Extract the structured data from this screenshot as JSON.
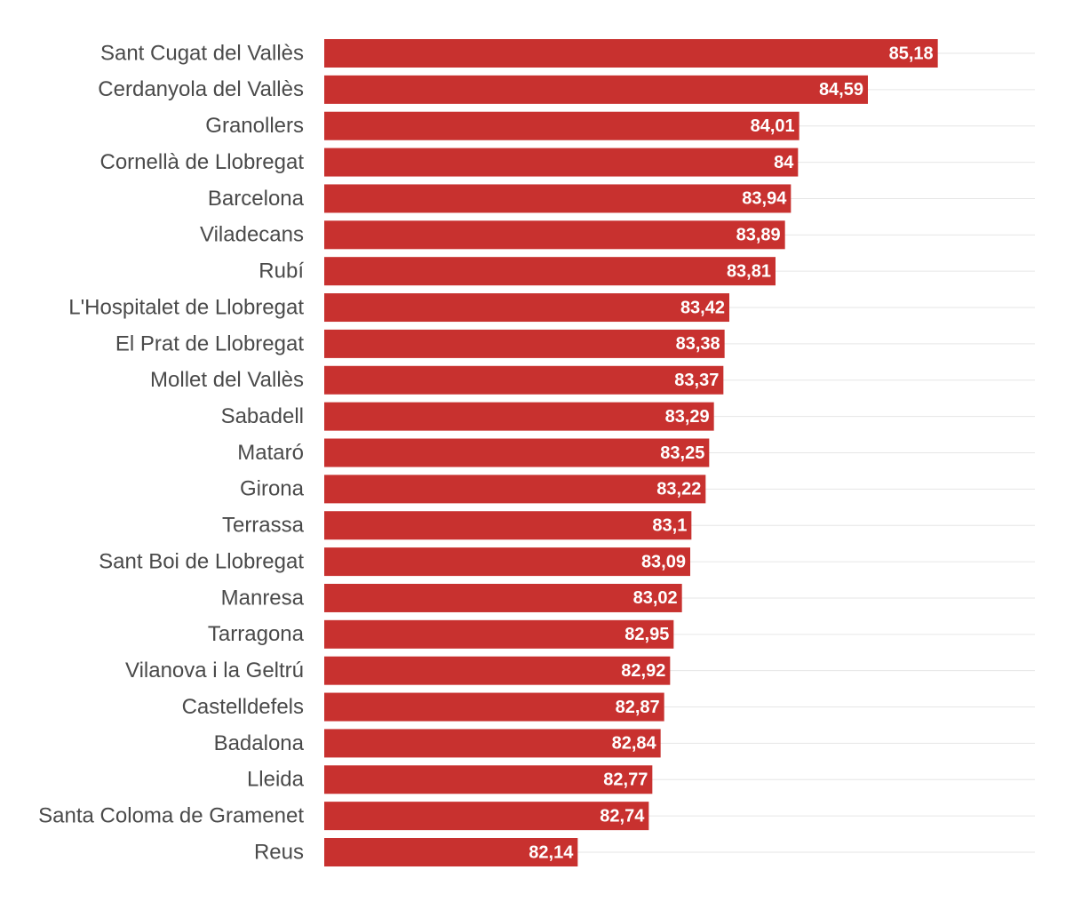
{
  "chart_data": {
    "type": "bar",
    "orientation": "horizontal",
    "color": "#c8312f",
    "xlim": [
      80,
      86
    ],
    "categories": [
      "Sant Cugat del Vallès",
      "Cerdanyola del Vallès",
      "Granollers",
      "Cornellà de Llobregat",
      "Barcelona",
      "Viladecans",
      "Rubí",
      "L'Hospitalet de Llobregat",
      "El Prat de Llobregat",
      "Mollet del Vallès",
      "Sabadell",
      "Mataró",
      "Girona",
      "Terrassa",
      "Sant Boi de Llobregat",
      "Manresa",
      "Tarragona",
      "Vilanova i la Geltrú",
      "Castelldefels",
      "Badalona",
      "Lleida",
      "Santa Coloma de Gramenet",
      "Reus"
    ],
    "values": [
      85.18,
      84.59,
      84.01,
      84,
      83.94,
      83.89,
      83.81,
      83.42,
      83.38,
      83.37,
      83.29,
      83.25,
      83.22,
      83.1,
      83.09,
      83.02,
      82.95,
      82.92,
      82.87,
      82.84,
      82.77,
      82.74,
      82.14
    ],
    "value_labels": [
      "85,18",
      "84,59",
      "84,01",
      "84",
      "83,94",
      "83,89",
      "83,81",
      "83,42",
      "83,38",
      "83,37",
      "83,29",
      "83,25",
      "83,22",
      "83,1",
      "83,09",
      "83,02",
      "82,95",
      "82,92",
      "82,87",
      "82,84",
      "82,77",
      "82,74",
      "82,14"
    ]
  }
}
